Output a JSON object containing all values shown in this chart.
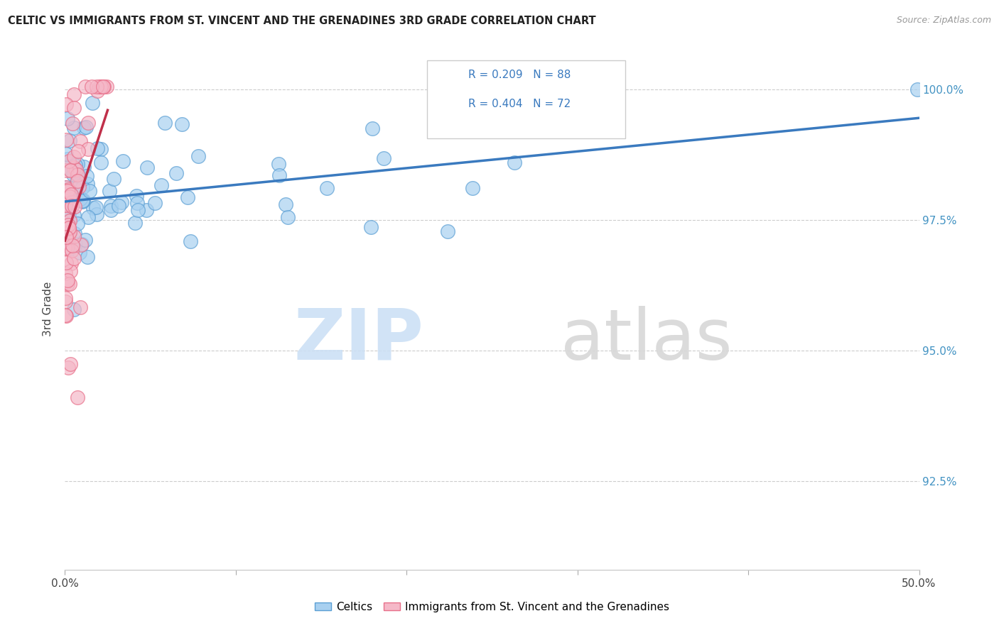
{
  "title": "CELTIC VS IMMIGRANTS FROM ST. VINCENT AND THE GRENADINES 3RD GRADE CORRELATION CHART",
  "source": "Source: ZipAtlas.com",
  "ylabel": "3rd Grade",
  "ytick_labels": [
    "100.0%",
    "97.5%",
    "95.0%",
    "92.5%"
  ],
  "ytick_values": [
    1.0,
    0.975,
    0.95,
    0.925
  ],
  "xlim": [
    0.0,
    0.5
  ],
  "ylim": [
    0.908,
    1.008
  ],
  "celtics_color": "#a8d0f0",
  "celtics_edge_color": "#5b9fd4",
  "immigrants_color": "#f5b8c8",
  "immigrants_edge_color": "#e8708a",
  "celtics_R": 0.209,
  "celtics_N": 88,
  "immigrants_R": 0.404,
  "immigrants_N": 72,
  "celtics_line_color": "#3a7abf",
  "immigrants_line_color": "#c0304a",
  "legend_R1": "R = 0.209",
  "legend_N1": "N = 88",
  "legend_R2": "R = 0.404",
  "legend_N2": "N = 72",
  "legend_text_color": "#3a7abf",
  "right_tick_color": "#4393c3",
  "watermark_zip_color": "#cce0f5",
  "watermark_atlas_color": "#d8d8d8"
}
